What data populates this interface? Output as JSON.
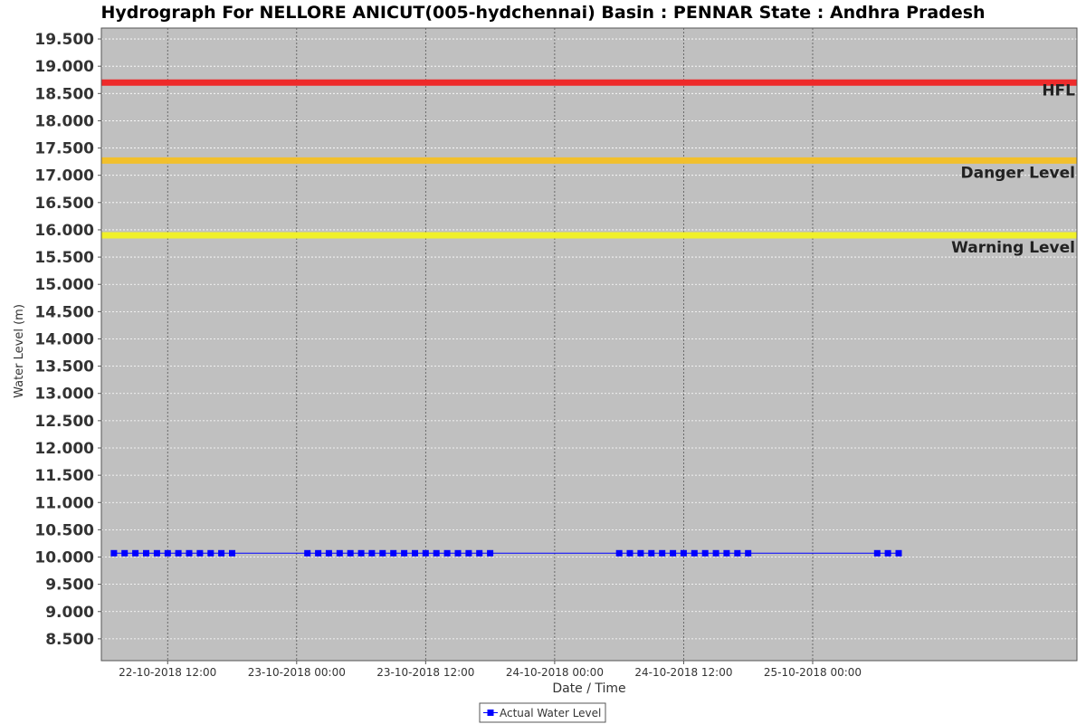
{
  "chart_data": {
    "type": "line",
    "title": "Hydrograph For NELLORE ANICUT(005-hydchennai) Basin : PENNAR State : Andhra Pradesh",
    "xlabel": "Date / Time",
    "ylabel": "Water Level (m)",
    "ylim": [
      8.1,
      19.7
    ],
    "xlim": [
      "2018-10-22T05:50",
      "2018-10-26T00:35"
    ],
    "yticks": [
      "8.500",
      "9.000",
      "9.500",
      "10.000",
      "10.500",
      "11.000",
      "11.500",
      "12.000",
      "12.500",
      "13.000",
      "13.500",
      "14.000",
      "14.500",
      "15.000",
      "15.500",
      "16.000",
      "16.500",
      "17.000",
      "17.500",
      "18.000",
      "18.500",
      "19.000",
      "19.500"
    ],
    "xticks": [
      {
        "at": "2018-10-22T12:00",
        "label": "22-10-2018 12:00"
      },
      {
        "at": "2018-10-23T00:00",
        "label": "23-10-2018 00:00"
      },
      {
        "at": "2018-10-23T12:00",
        "label": "23-10-2018 12:00"
      },
      {
        "at": "2018-10-24T00:00",
        "label": "24-10-2018 00:00"
      },
      {
        "at": "2018-10-24T12:00",
        "label": "24-10-2018 12:00"
      },
      {
        "at": "2018-10-25T00:00",
        "label": "25-10-2018 00:00"
      }
    ],
    "grid": true,
    "legend_position": "bottom-center",
    "reference_lines": [
      {
        "label": "HFL",
        "value": 18.7,
        "color": "#ee2b2b"
      },
      {
        "label": "Danger Level",
        "value": 17.27,
        "color": "#f2c02c"
      },
      {
        "label": "Warning Level",
        "value": 15.9,
        "color": "#f0f02a"
      }
    ],
    "series": [
      {
        "name": "Actual Water Level",
        "color": "#0000ff",
        "x": [
          "2018-10-22T07:00",
          "2018-10-22T08:00",
          "2018-10-22T09:00",
          "2018-10-22T10:00",
          "2018-10-22T11:00",
          "2018-10-22T12:00",
          "2018-10-22T13:00",
          "2018-10-22T14:00",
          "2018-10-22T15:00",
          "2018-10-22T16:00",
          "2018-10-22T17:00",
          "2018-10-22T18:00",
          "2018-10-23T01:00",
          "2018-10-23T02:00",
          "2018-10-23T03:00",
          "2018-10-23T04:00",
          "2018-10-23T05:00",
          "2018-10-23T06:00",
          "2018-10-23T07:00",
          "2018-10-23T08:00",
          "2018-10-23T09:00",
          "2018-10-23T10:00",
          "2018-10-23T11:00",
          "2018-10-23T12:00",
          "2018-10-23T13:00",
          "2018-10-23T14:00",
          "2018-10-23T15:00",
          "2018-10-23T16:00",
          "2018-10-23T17:00",
          "2018-10-23T18:00",
          "2018-10-24T06:00",
          "2018-10-24T07:00",
          "2018-10-24T08:00",
          "2018-10-24T09:00",
          "2018-10-24T10:00",
          "2018-10-24T11:00",
          "2018-10-24T12:00",
          "2018-10-24T13:00",
          "2018-10-24T14:00",
          "2018-10-24T15:00",
          "2018-10-24T16:00",
          "2018-10-24T17:00",
          "2018-10-24T18:00",
          "2018-10-25T06:00",
          "2018-10-25T07:00",
          "2018-10-25T08:00"
        ],
        "y": [
          10.07,
          10.07,
          10.07,
          10.07,
          10.07,
          10.07,
          10.07,
          10.07,
          10.07,
          10.07,
          10.07,
          10.07,
          10.07,
          10.07,
          10.07,
          10.07,
          10.07,
          10.07,
          10.07,
          10.07,
          10.07,
          10.07,
          10.07,
          10.07,
          10.07,
          10.07,
          10.07,
          10.07,
          10.07,
          10.07,
          10.07,
          10.07,
          10.07,
          10.07,
          10.07,
          10.07,
          10.07,
          10.07,
          10.07,
          10.07,
          10.07,
          10.07,
          10.07,
          10.07,
          10.07,
          10.07
        ]
      }
    ],
    "colors": {
      "plot_background": "#c0c0c0",
      "gridline": "#ffffff",
      "x_gridline": "#555555"
    }
  }
}
